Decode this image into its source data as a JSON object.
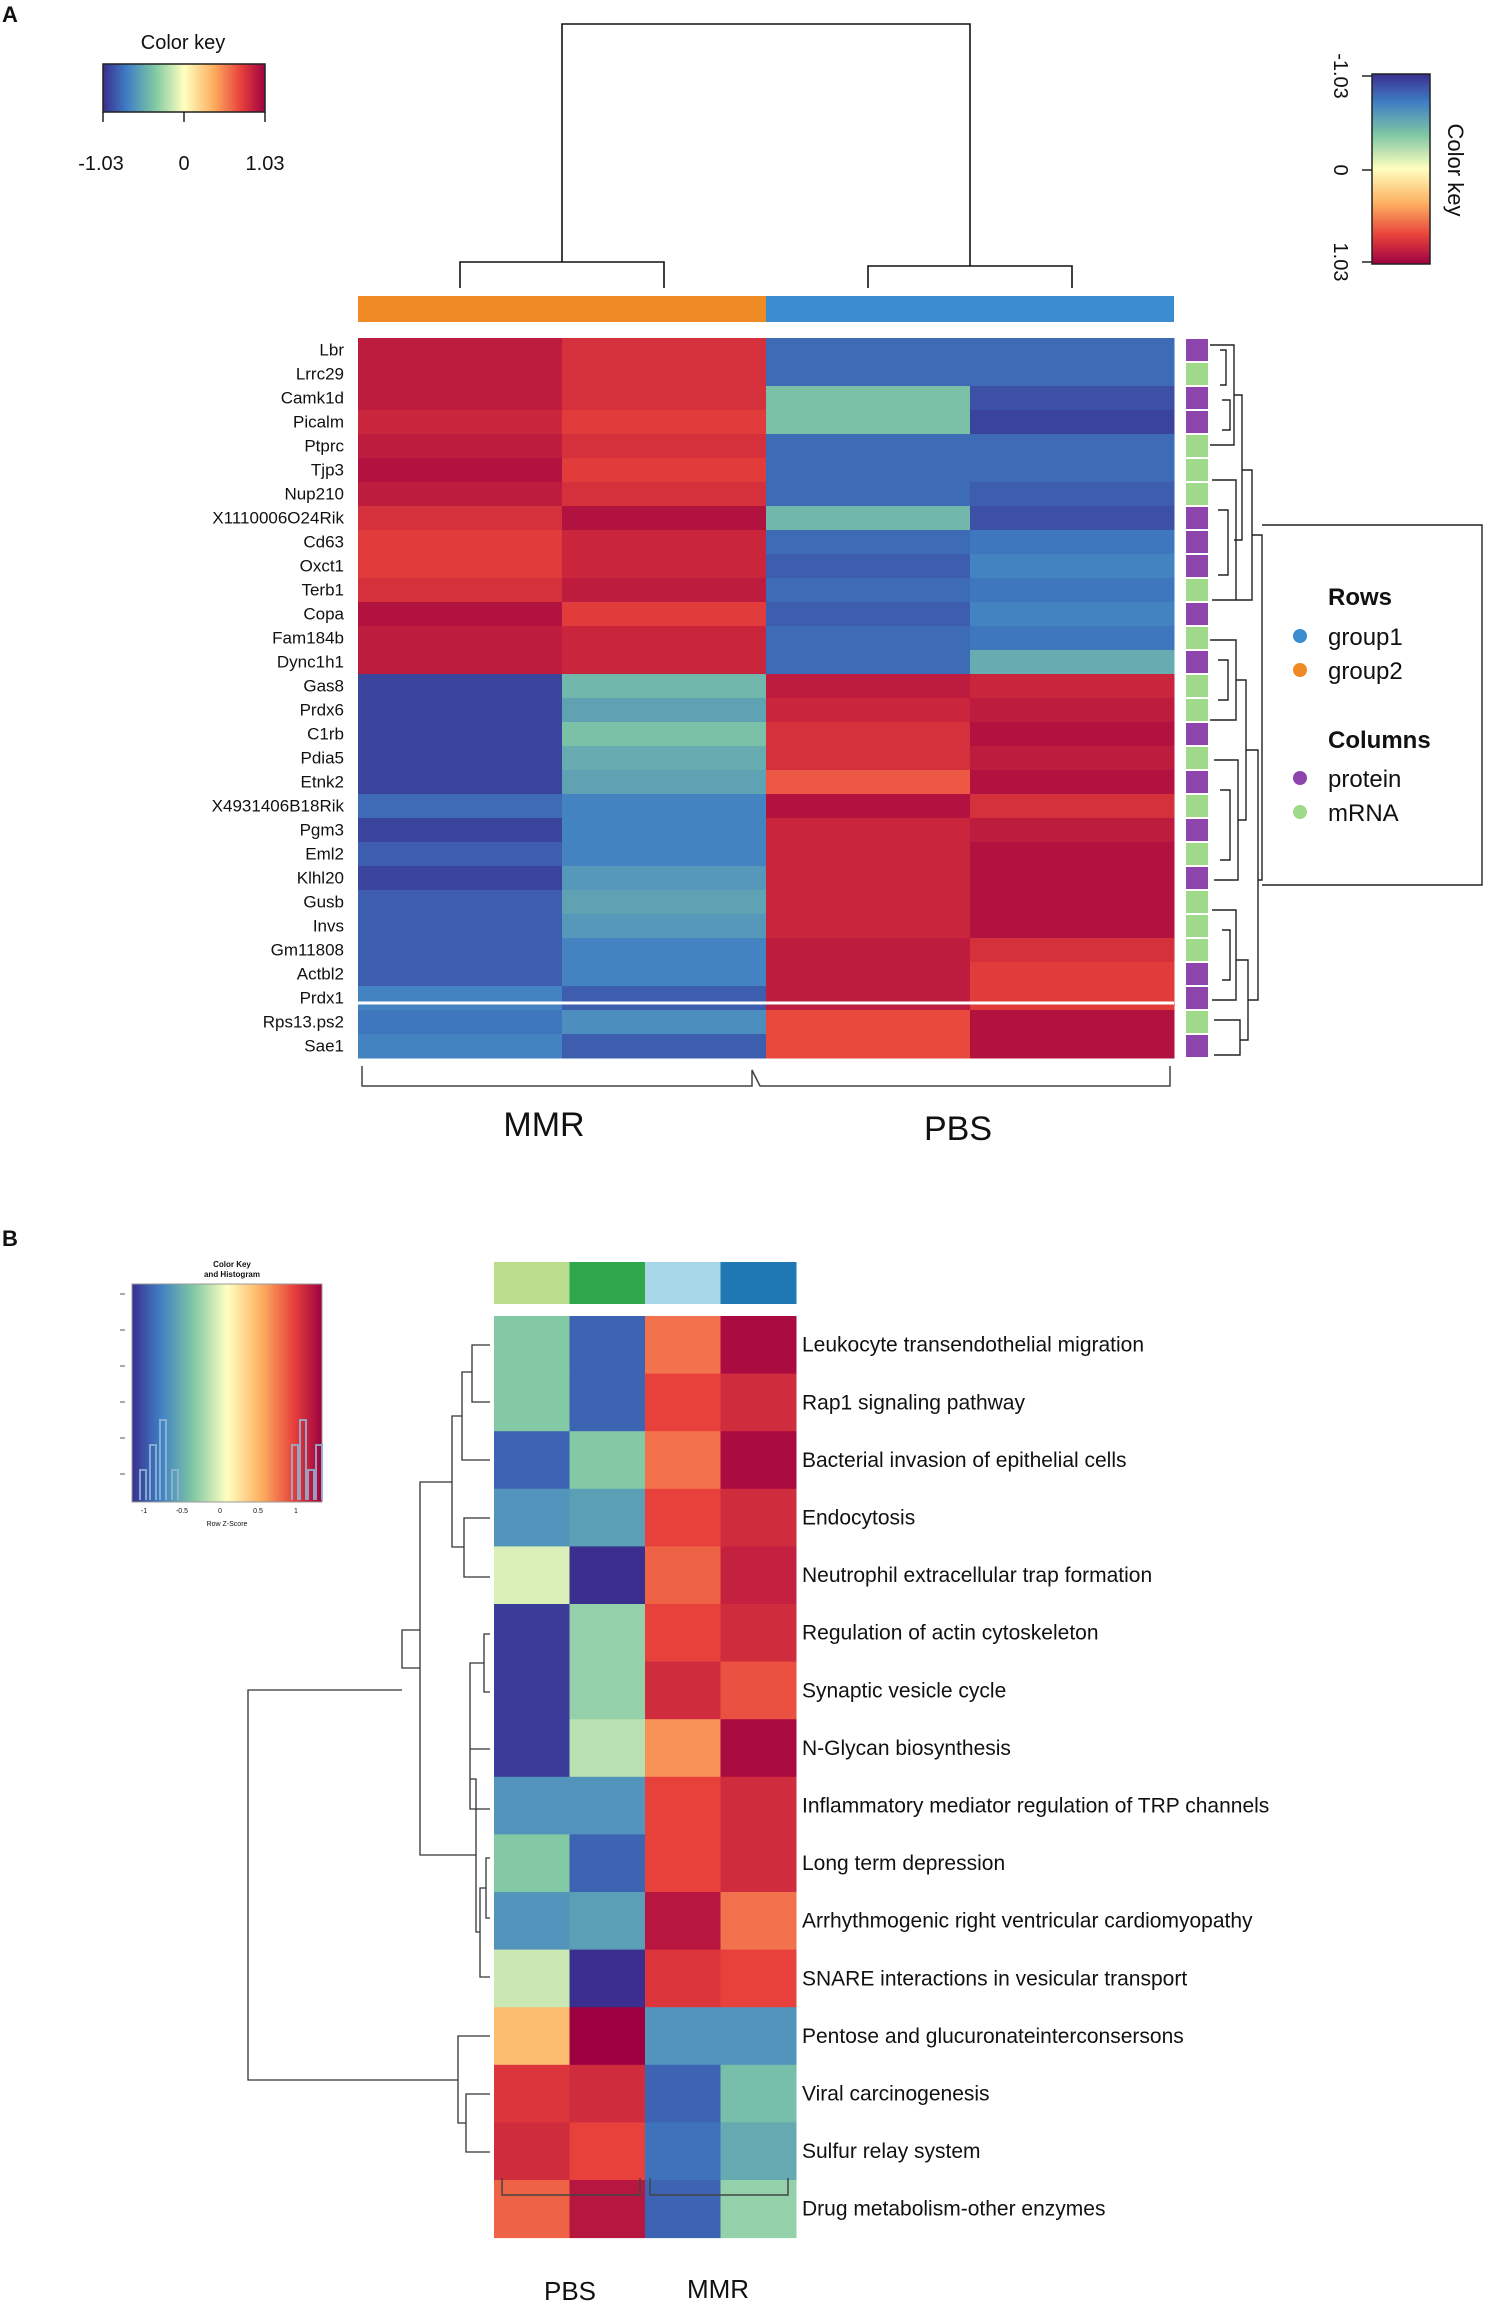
{
  "chart_data": [
    {
      "panel": "A",
      "type": "heatmap",
      "color_key": {
        "title": "Color key",
        "ticks": [
          "-1.03",
          "0",
          "1.03"
        ],
        "min": -1.03,
        "max": 1.03
      },
      "color_key_right": {
        "title": "Color key",
        "ticks": [
          "-1.03",
          "0",
          "1.03"
        ]
      },
      "columns": [
        "MMR",
        "MMR",
        "PBS",
        "PBS"
      ],
      "column_groups": [
        {
          "label": "MMR",
          "group": "group2"
        },
        {
          "label": "PBS",
          "group": "group1"
        }
      ],
      "rows": [
        "Lbr",
        "Lrrc29",
        "Camk1d",
        "Picalm",
        "Ptprc",
        "Tjp3",
        "Nup210",
        "X1110006O24Rik",
        "Cd63",
        "Oxct1",
        "Terb1",
        "Copa",
        "Fam184b",
        "Dync1h1",
        "Gas8",
        "Prdx6",
        "C1rb",
        "Pdia5",
        "Etnk2",
        "X4931406B18Rik",
        "Pgm3",
        "Eml2",
        "Klhl20",
        "Gusb",
        "Invs",
        "Gm11808",
        "Actbl2",
        "Prdx1",
        "Rps13.ps2",
        "Sae1"
      ],
      "values": [
        [
          0.9,
          0.8,
          -0.8,
          -0.8
        ],
        [
          0.9,
          0.8,
          -0.8,
          -0.8
        ],
        [
          0.9,
          0.8,
          -0.4,
          -0.9
        ],
        [
          0.85,
          0.75,
          -0.4,
          -0.95
        ],
        [
          0.9,
          0.8,
          -0.8,
          -0.8
        ],
        [
          0.95,
          0.75,
          -0.8,
          -0.8
        ],
        [
          0.9,
          0.8,
          -0.8,
          -0.85
        ],
        [
          0.8,
          0.95,
          -0.45,
          -0.9
        ],
        [
          0.75,
          0.85,
          -0.8,
          -0.75
        ],
        [
          0.75,
          0.85,
          -0.85,
          -0.7
        ],
        [
          0.8,
          0.9,
          -0.8,
          -0.75
        ],
        [
          0.95,
          0.75,
          -0.85,
          -0.7
        ],
        [
          0.9,
          0.85,
          -0.8,
          -0.75
        ],
        [
          0.9,
          0.85,
          -0.8,
          -0.5
        ],
        [
          -0.95,
          -0.45,
          0.9,
          0.85
        ],
        [
          -0.95,
          -0.55,
          0.85,
          0.9
        ],
        [
          -0.95,
          -0.4,
          0.8,
          0.95
        ],
        [
          -0.95,
          -0.5,
          0.8,
          0.9
        ],
        [
          -0.95,
          -0.55,
          0.65,
          0.95
        ],
        [
          -0.8,
          -0.7,
          0.95,
          0.8
        ],
        [
          -0.95,
          -0.7,
          0.85,
          0.9
        ],
        [
          -0.85,
          -0.7,
          0.85,
          0.95
        ],
        [
          -0.95,
          -0.6,
          0.85,
          0.95
        ],
        [
          -0.85,
          -0.55,
          0.85,
          0.95
        ],
        [
          -0.85,
          -0.6,
          0.85,
          0.95
        ],
        [
          -0.85,
          -0.7,
          0.9,
          0.8
        ],
        [
          -0.85,
          -0.7,
          0.9,
          0.75
        ],
        [
          -0.7,
          -0.85,
          0.9,
          0.75
        ],
        [
          -0.75,
          -0.65,
          0.7,
          0.95
        ],
        [
          -0.7,
          -0.85,
          0.7,
          0.95
        ]
      ],
      "row_annotation": [
        "protein",
        "mRNA",
        "protein",
        "protein",
        "mRNA",
        "mRNA",
        "mRNA",
        "protein",
        "protein",
        "protein",
        "mRNA",
        "protein",
        "mRNA",
        "protein",
        "mRNA",
        "mRNA",
        "protein",
        "mRNA",
        "protein",
        "mRNA",
        "protein",
        "mRNA",
        "protein",
        "mRNA",
        "mRNA",
        "mRNA",
        "protein",
        "protein",
        "mRNA",
        "protein"
      ],
      "legend": {
        "rows_title": "Rows",
        "rows": [
          {
            "label": "group1",
            "color": "#3a8dd0"
          },
          {
            "label": "group2",
            "color": "#f08a24"
          }
        ],
        "columns_title": "Columns",
        "columns": [
          {
            "label": "protein",
            "color": "#8e44ad"
          },
          {
            "label": "mRNA",
            "color": "#9fd98a"
          }
        ]
      },
      "xlabels": [
        "MMR",
        "PBS"
      ]
    },
    {
      "panel": "B",
      "type": "heatmap",
      "color_key": {
        "title": "Color Key",
        "subtitle": "and Histogram",
        "xlabel": "Row Z-Score",
        "ticks": [
          "-1",
          "-0.5",
          "0",
          "0.5",
          "1"
        ],
        "min": -1,
        "max": 1
      },
      "columns": [
        "PBS",
        "PBS",
        "MMR",
        "MMR"
      ],
      "column_colors": [
        "#b9dd8d",
        "#2ea84a",
        "#a8d7ea",
        "#1f78b4"
      ],
      "rows": [
        "Leukocyte transendothelial migration",
        "Rap1 signaling pathway",
        "Bacterial invasion of epithelial cells",
        "Endocytosis",
        "Neutrophil extracellular trap formation",
        "Regulation of actin cytoskeleton",
        "Synaptic vesicle cycle",
        "N-Glycan biosynthesis",
        "Inflammatory mediator regulation of TRP channels",
        "Long term depression",
        "Arrhythmogenic right ventricular cardiomyopathy",
        "SNARE interactions in vesicular transport",
        "Pentose and glucuronateinterconsersons",
        "Viral carcinogenesis",
        "Sulfur relay system",
        "Drug metabolism-other enzymes"
      ],
      "values": [
        [
          -0.35,
          -0.8,
          0.55,
          0.95
        ],
        [
          -0.35,
          -0.8,
          0.7,
          0.8
        ],
        [
          -0.8,
          -0.35,
          0.55,
          0.95
        ],
        [
          -0.6,
          -0.55,
          0.7,
          0.8
        ],
        [
          -0.1,
          -1.0,
          0.6,
          0.85
        ],
        [
          -0.95,
          -0.3,
          0.7,
          0.8
        ],
        [
          -0.95,
          -0.3,
          0.8,
          0.65
        ],
        [
          -0.95,
          -0.2,
          0.45,
          0.95
        ],
        [
          -0.6,
          -0.6,
          0.7,
          0.8
        ],
        [
          -0.35,
          -0.8,
          0.7,
          0.8
        ],
        [
          -0.6,
          -0.55,
          0.9,
          0.55
        ],
        [
          -0.15,
          -1.0,
          0.75,
          0.7
        ],
        [
          0.3,
          1.0,
          -0.6,
          -0.6
        ],
        [
          0.75,
          0.8,
          -0.8,
          -0.4
        ],
        [
          0.8,
          0.7,
          -0.75,
          -0.5
        ],
        [
          0.6,
          0.9,
          -0.8,
          -0.3
        ]
      ],
      "xlabels": [
        "PBS",
        "MMR"
      ]
    }
  ],
  "panel_labels": {
    "a": "A",
    "b": "B"
  }
}
